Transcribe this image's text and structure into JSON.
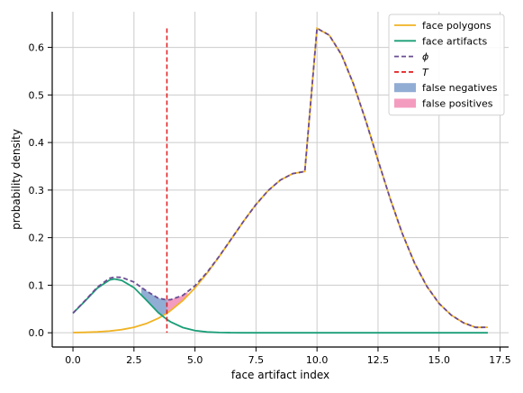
{
  "chart_data": {
    "type": "line",
    "title": "",
    "xlabel": "face artifact index",
    "ylabel": "probability density",
    "xlim": [
      -0.85,
      17.85
    ],
    "ylim": [
      -0.03,
      0.675
    ],
    "x_ticks": [
      0.0,
      2.5,
      5.0,
      7.5,
      10.0,
      12.5,
      15.0,
      17.5
    ],
    "x_tick_labels": [
      "0.0",
      "2.5",
      "5.0",
      "7.5",
      "10.0",
      "12.5",
      "15.0",
      "17.5"
    ],
    "y_ticks": [
      0.0,
      0.1,
      0.2,
      0.3,
      0.4,
      0.5,
      0.6
    ],
    "y_tick_labels": [
      "0.0",
      "0.1",
      "0.2",
      "0.3",
      "0.4",
      "0.5",
      "0.6"
    ],
    "grid": true,
    "legend_position": "top-right",
    "threshold": {
      "name": "T",
      "x": 3.85,
      "y_top": 0.64,
      "color": "#e41a1c"
    },
    "series": [
      {
        "name": "face polygons",
        "color": "#f0b323",
        "style": "solid",
        "x": [
          0,
          0.5,
          1,
          1.5,
          2,
          2.5,
          3,
          3.5,
          3.85,
          4,
          4.5,
          5,
          5.5,
          6,
          6.5,
          7,
          7.5,
          8,
          8.5,
          9,
          9.5,
          10,
          10.5,
          11,
          11.5,
          12,
          12.5,
          13,
          13.5,
          14,
          14.5,
          15,
          15.5,
          16,
          16.5,
          17
        ],
        "y": [
          0.0004,
          0.0009,
          0.0019,
          0.0036,
          0.0066,
          0.0115,
          0.0192,
          0.0306,
          0.0411,
          0.0466,
          0.0676,
          0.0942,
          0.1256,
          0.1608,
          0.198,
          0.2351,
          0.2697,
          0.299,
          0.3211,
          0.3345,
          0.3391,
          0.64,
          0.6258,
          0.5849,
          0.5224,
          0.4456,
          0.3627,
          0.2815,
          0.2079,
          0.1461,
          0.0977,
          0.0617,
          0.0371,
          0.021,
          0.0113,
          0.0115
        ]
      },
      {
        "name": "face artifacts",
        "color": "#1a9e77",
        "style": "solid",
        "x": [
          0,
          0.5,
          1,
          1.5,
          1.7,
          2,
          2.5,
          3,
          3.5,
          3.85,
          4,
          4.5,
          5,
          5.5,
          6,
          6.5,
          7,
          8,
          10,
          12,
          14,
          16,
          17
        ],
        "y": [
          0.041,
          0.067,
          0.094,
          0.111,
          0.113,
          0.11,
          0.095,
          0.069,
          0.042,
          0.028,
          0.023,
          0.011,
          0.0045,
          0.0016,
          0.0005,
          0.0001,
          0.0,
          0.0,
          0.0,
          0.0,
          0.0,
          0.0,
          0.0
        ]
      },
      {
        "name": "ϕ",
        "color": "#6a4c93",
        "style": "dashed",
        "x": [
          0,
          0.5,
          1,
          1.5,
          1.7,
          2,
          2.5,
          3,
          3.5,
          3.85,
          4,
          4.5,
          5,
          5.5,
          6,
          6.5,
          7,
          7.5,
          8,
          8.5,
          9,
          9.5,
          10,
          10.5,
          11,
          11.5,
          12,
          12.5,
          13,
          13.5,
          14,
          14.5,
          15,
          15.5,
          16,
          16.5,
          17
        ],
        "y": [
          0.0414,
          0.0679,
          0.0959,
          0.1146,
          0.117,
          0.1165,
          0.1065,
          0.0882,
          0.0726,
          0.0691,
          0.0696,
          0.0786,
          0.0987,
          0.1272,
          0.1613,
          0.1981,
          0.2351,
          0.2697,
          0.299,
          0.3211,
          0.3345,
          0.3391,
          0.64,
          0.6258,
          0.5849,
          0.5224,
          0.4456,
          0.3627,
          0.2815,
          0.2079,
          0.1461,
          0.0977,
          0.0617,
          0.0371,
          0.021,
          0.0113,
          0.0115
        ]
      },
      {
        "name": "T",
        "color": "#e41a1c",
        "style": "dashed"
      }
    ],
    "shaded_regions": [
      {
        "name": "false negatives",
        "color": "#7f9fcc"
      },
      {
        "name": "false positives",
        "color": "#f28bb4"
      }
    ]
  }
}
